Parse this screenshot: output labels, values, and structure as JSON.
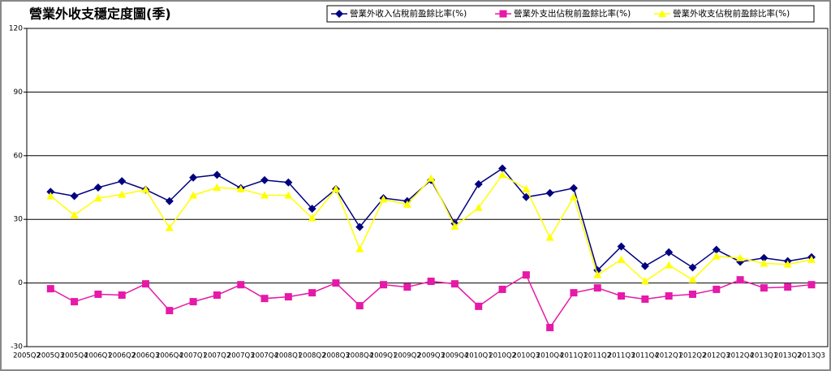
{
  "chart_data": {
    "type": "line",
    "title": "營業外收支穩定度圖(季)",
    "categories": [
      "2005Q2",
      "2005Q3",
      "2005Q4",
      "2006Q1",
      "2006Q2",
      "2006Q3",
      "2006Q4",
      "2007Q1",
      "2007Q2",
      "2007Q3",
      "2007Q4",
      "2008Q1",
      "2008Q2",
      "2008Q3",
      "2008Q4",
      "2009Q1",
      "2009Q2",
      "2009Q3",
      "2009Q4",
      "2010Q1",
      "2010Q2",
      "2010Q3",
      "2010Q4",
      "2011Q1",
      "2011Q2",
      "2011Q3",
      "2011Q4",
      "2012Q1",
      "2012Q2",
      "2012Q3",
      "2012Q4",
      "2013Q1",
      "2013Q2",
      "2013Q3"
    ],
    "series": [
      {
        "name": "營業外收入佔稅前盈餘比率(%)",
        "color": "#000080",
        "marker": "diamond",
        "values": [
          null,
          43,
          41,
          45,
          48,
          44,
          38.6,
          49.7,
          51,
          44.7,
          48.5,
          47.4,
          35,
          44.3,
          26.4,
          40,
          38.6,
          48.5,
          28,
          46.6,
          54,
          40.5,
          42.4,
          44.7,
          6,
          17.2,
          8,
          14.5,
          7.3,
          15.7,
          10,
          11.8,
          10.3,
          12.2
        ]
      },
      {
        "name": "營業外支出佔稅前盈餘比率(%)",
        "color": "#e619a8",
        "marker": "square",
        "values": [
          null,
          -2.7,
          -8.8,
          -5.3,
          -5.7,
          -0.4,
          -13,
          -8.8,
          -5.7,
          -0.8,
          -7.3,
          -6.5,
          -4.6,
          0,
          -10.7,
          -0.8,
          -1.9,
          0.8,
          -0.4,
          -11,
          -3,
          3.8,
          -21,
          -4.6,
          -2.3,
          -6.1,
          -7.6,
          -6.1,
          -5.3,
          -3,
          1.5,
          -2.3,
          -1.9,
          -0.8
        ]
      },
      {
        "name": "營業外收支佔稅前盈餘比率(%)",
        "color": "#ffff00",
        "marker": "triangle",
        "values": [
          null,
          41,
          32,
          40,
          41.7,
          44,
          26,
          41.3,
          45,
          44.3,
          41.3,
          41.3,
          30.6,
          44.3,
          16,
          39.4,
          37,
          49.3,
          26.7,
          35.5,
          51,
          44.3,
          21.4,
          40.5,
          3.8,
          11,
          0.8,
          8.4,
          1.5,
          12.6,
          11.8,
          9.2,
          8.8,
          11
        ]
      }
    ],
    "ylim": [
      -30,
      120
    ],
    "yticks": [
      -30,
      0,
      30,
      60,
      90,
      120
    ],
    "grid": true,
    "legend": "top-right"
  }
}
